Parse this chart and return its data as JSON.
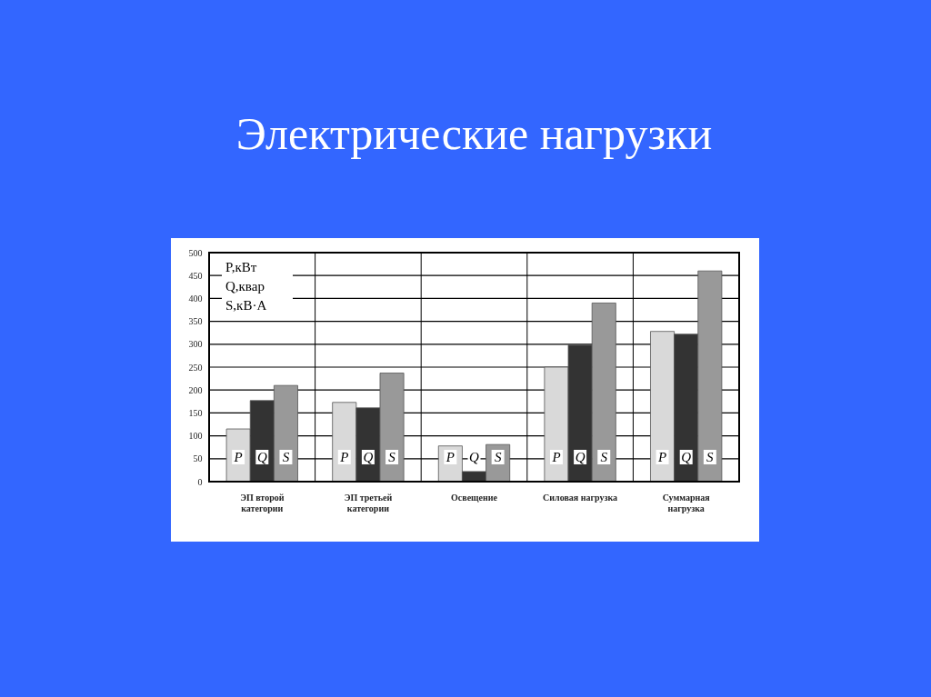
{
  "chart_data": {
    "type": "bar",
    "title": "Электрические нагрузки",
    "categories": [
      "ЭП второй категории",
      "ЭП третьей категории",
      "Освещение",
      "Силовая нагрузка",
      "Суммарная нагрузка"
    ],
    "series": [
      {
        "name": "P",
        "color": "#d9d9d9",
        "values": [
          115,
          173,
          78,
          250,
          328
        ]
      },
      {
        "name": "Q",
        "color": "#333333",
        "values": [
          177,
          161,
          22,
          298,
          322
        ]
      },
      {
        "name": "S",
        "color": "#999999",
        "values": [
          210,
          237,
          81,
          390,
          460
        ]
      }
    ],
    "ylim": [
      0,
      500
    ],
    "yticks": [
      0,
      50,
      100,
      150,
      200,
      250,
      300,
      350,
      400,
      450,
      500
    ],
    "grid": true,
    "annotations": [
      "P,кВт",
      "Q,квар",
      "S,кВ·А"
    ]
  }
}
